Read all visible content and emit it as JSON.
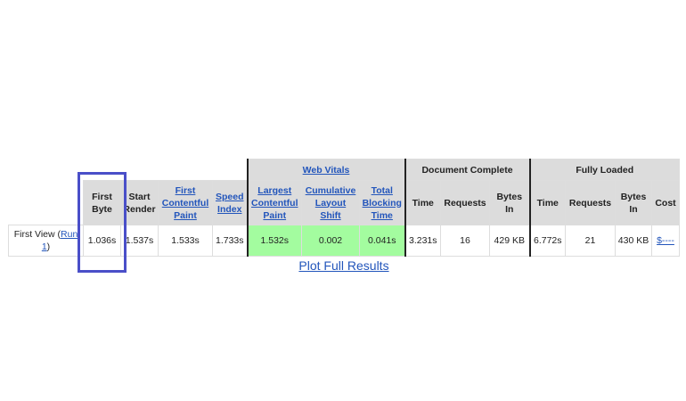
{
  "groups": {
    "web_vitals": "Web Vitals",
    "document_complete": "Document Complete",
    "fully_loaded": "Fully Loaded"
  },
  "headers": {
    "first_byte": "First Byte",
    "start_render": "Start Render",
    "fcp": "First Contentful Paint",
    "speed_index": "Speed Index",
    "lcp": "Largest Contentful Paint",
    "cls": "Cumulative Layout Shift",
    "tbt": "Total Blocking Time",
    "dc_time": "Time",
    "dc_requests": "Requests",
    "dc_bytes": "Bytes In",
    "fl_time": "Time",
    "fl_requests": "Requests",
    "fl_bytes": "Bytes In",
    "cost": "Cost"
  },
  "row": {
    "label": "First View (",
    "run_link": "Run 1",
    "label_end": ")",
    "first_byte": "1.036s",
    "start_render": "1.537s",
    "fcp": "1.533s",
    "speed_index": "1.733s",
    "lcp": "1.532s",
    "cls": "0.002",
    "tbt": "0.041s",
    "dc_time": "3.231s",
    "dc_requests": "16",
    "dc_bytes": "429 KB",
    "fl_time": "6.772s",
    "fl_requests": "21",
    "fl_bytes": "430 KB",
    "cost": "$----"
  },
  "plot_link": "Plot Full Results",
  "colors": {
    "good": "#a3fc9f",
    "highlight": "#4a4fc8",
    "link": "#2255bb"
  }
}
